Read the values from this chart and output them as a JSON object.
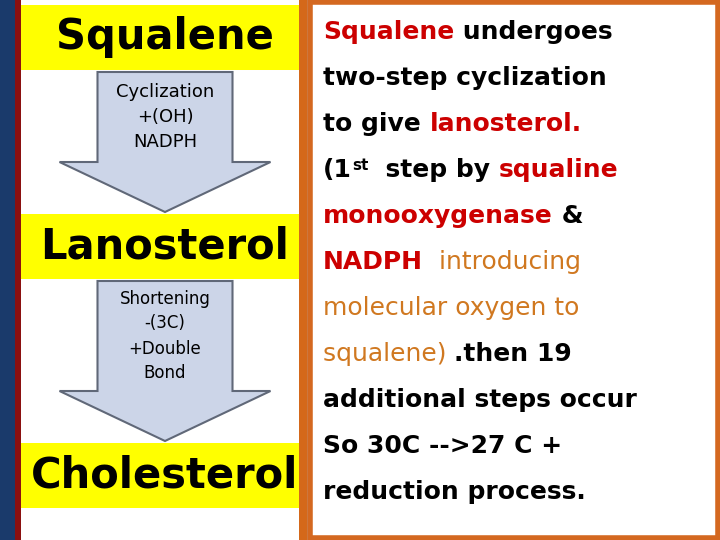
{
  "bg_color": "#b0b0b0",
  "left_panel_bg": "#ffffff",
  "right_panel_bg": "#ffffff",
  "right_panel_border": "#d46820",
  "squalene_box_color": "#ffff00",
  "squalene_text": "Squalene",
  "lanosterol_box_color": "#ffff00",
  "lanosterol_text": "Lanosterol",
  "cholesterol_box_color": "#ffff00",
  "cholesterol_text": "Cholesterol",
  "arrow_fill": "#ccd5e8",
  "arrow_edge": "#606878",
  "arrow1_text": "Cyclization\n+(OH)\nNADPH",
  "arrow2_text": "Shortening\n-(3C)\n+Double\nBond",
  "side_blue": "#1a3a6b",
  "side_red": "#8b1010",
  "side_orange": "#d4681a",
  "figure_width": 7.2,
  "figure_height": 5.4,
  "dpi": 100,
  "right_lines": [
    [
      [
        "Squalene",
        "#cc0000",
        true,
        18
      ],
      [
        " undergoes",
        "#000000",
        true,
        18
      ]
    ],
    [
      [
        "two-step cyclization",
        "#000000",
        true,
        18
      ]
    ],
    [
      [
        "to give ",
        "#000000",
        true,
        18
      ],
      [
        "lanosterol.",
        "#cc0000",
        true,
        18
      ]
    ],
    [
      [
        "(1",
        "#000000",
        true,
        18
      ],
      [
        "st",
        "#000000",
        true,
        11
      ],
      [
        "  step by ",
        "#000000",
        true,
        18
      ],
      [
        "squaline",
        "#cc0000",
        true,
        18
      ]
    ],
    [
      [
        "monooxygenase",
        "#cc0000",
        true,
        18
      ],
      [
        " &",
        "#000000",
        true,
        18
      ]
    ],
    [
      [
        "NADPH",
        "#cc0000",
        true,
        18
      ],
      [
        "  introducing",
        "#d07820",
        false,
        18
      ]
    ],
    [
      [
        "molecular oxygen to",
        "#d07820",
        false,
        18
      ]
    ],
    [
      [
        "squalene) ",
        "#d07820",
        false,
        18
      ],
      [
        ".then 19",
        "#000000",
        true,
        18
      ]
    ],
    [
      [
        "additional steps occur",
        "#000000",
        true,
        18
      ]
    ],
    [
      [
        "So 30C -->27 C +",
        "#000000",
        true,
        18
      ]
    ],
    [
      [
        "reduction process.",
        "#000000",
        true,
        18
      ]
    ]
  ]
}
